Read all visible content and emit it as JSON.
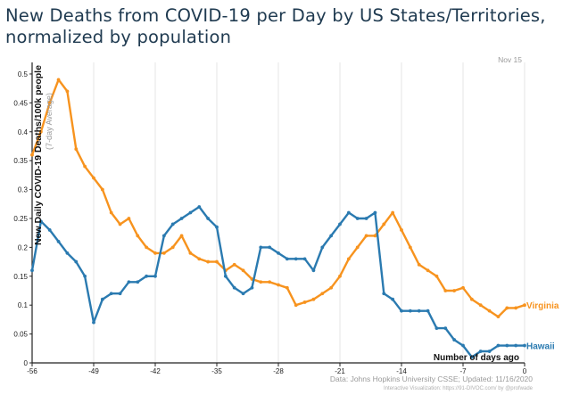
{
  "header": {
    "title_line1": "New Deaths from COVID-19 per Day by US States/Territories,",
    "title_line2": "normalized by population"
  },
  "date_label": "Nov 15",
  "source_line": "Data: Johns Hopkins University CSSE; Updated: 11/16/2020",
  "viz_credit": "Interactive Visualization: https://91-DIVOC.com/ by @profwade",
  "chart_data": {
    "type": "line",
    "title": "New Deaths from COVID-19 per Day by US States/Territories, normalized by population",
    "xlabel": "Number of days ago",
    "ylabel": "New Daily COVID-19 Deaths/100k people",
    "ylabel_sub": "(7-day Average)",
    "xlim": [
      -56,
      0
    ],
    "ylim": [
      0,
      0.52
    ],
    "x_ticks": [
      -56,
      -49,
      -42,
      -35,
      -28,
      -21,
      -14,
      -7,
      0
    ],
    "y_ticks": [
      0,
      0.05,
      0.1,
      0.15,
      0.2,
      0.25,
      0.3,
      0.35,
      0.4,
      0.45,
      0.5
    ],
    "y_tick_labels": [
      "0",
      "0.05",
      "0.1",
      "0.15",
      "0.2",
      "0.25",
      "0.3",
      "0.35",
      "0.4",
      "0.45",
      "0.5"
    ],
    "grid": "vertical",
    "series": [
      {
        "name": "Virginia",
        "color": "#f7931e",
        "x": [
          -56,
          -55,
          -54,
          -53,
          -52,
          -51,
          -50,
          -49,
          -48,
          -47,
          -46,
          -45,
          -44,
          -43,
          -42,
          -41,
          -40,
          -39,
          -38,
          -37,
          -36,
          -35,
          -34,
          -33,
          -32,
          -31,
          -30,
          -29,
          -28,
          -27,
          -26,
          -25,
          -24,
          -23,
          -22,
          -21,
          -20,
          -19,
          -18,
          -17,
          -16,
          -15,
          -14,
          -13,
          -12,
          -11,
          -10,
          -9,
          -8,
          -7,
          -6,
          -5,
          -4,
          -3,
          -2,
          -1,
          0
        ],
        "values": [
          0.36,
          0.4,
          0.45,
          0.49,
          0.47,
          0.37,
          0.34,
          0.32,
          0.3,
          0.26,
          0.24,
          0.25,
          0.22,
          0.2,
          0.19,
          0.19,
          0.2,
          0.22,
          0.19,
          0.18,
          0.175,
          0.175,
          0.16,
          0.17,
          0.16,
          0.145,
          0.14,
          0.14,
          0.135,
          0.13,
          0.1,
          0.105,
          0.11,
          0.12,
          0.13,
          0.15,
          0.18,
          0.2,
          0.22,
          0.22,
          0.24,
          0.26,
          0.23,
          0.2,
          0.17,
          0.16,
          0.15,
          0.125,
          0.125,
          0.13,
          0.11,
          0.1,
          0.09,
          0.08,
          0.095,
          0.095,
          0.1
        ]
      },
      {
        "name": "Hawaii",
        "color": "#2a7ab0",
        "x": [
          -56,
          -55,
          -54,
          -53,
          -52,
          -51,
          -50,
          -49,
          -48,
          -47,
          -46,
          -45,
          -44,
          -43,
          -42,
          -41,
          -40,
          -39,
          -38,
          -37,
          -36,
          -35,
          -34,
          -33,
          -32,
          -31,
          -30,
          -29,
          -28,
          -27,
          -26,
          -25,
          -24,
          -23,
          -22,
          -21,
          -20,
          -19,
          -18,
          -17,
          -16,
          -15,
          -14,
          -13,
          -12,
          -11,
          -10,
          -9,
          -8,
          -7,
          -6,
          -5,
          -4,
          -3,
          -2,
          -1,
          0
        ],
        "values": [
          0.16,
          0.245,
          0.23,
          0.21,
          0.19,
          0.175,
          0.15,
          0.07,
          0.11,
          0.12,
          0.12,
          0.14,
          0.14,
          0.15,
          0.15,
          0.22,
          0.24,
          0.25,
          0.26,
          0.27,
          0.25,
          0.235,
          0.15,
          0.13,
          0.12,
          0.13,
          0.2,
          0.2,
          0.19,
          0.18,
          0.18,
          0.18,
          0.16,
          0.2,
          0.22,
          0.24,
          0.26,
          0.25,
          0.25,
          0.26,
          0.12,
          0.11,
          0.09,
          0.09,
          0.09,
          0.09,
          0.06,
          0.06,
          0.04,
          0.03,
          0.01,
          0.02,
          0.02,
          0.03,
          0.03,
          0.03,
          0.03
        ]
      }
    ]
  }
}
